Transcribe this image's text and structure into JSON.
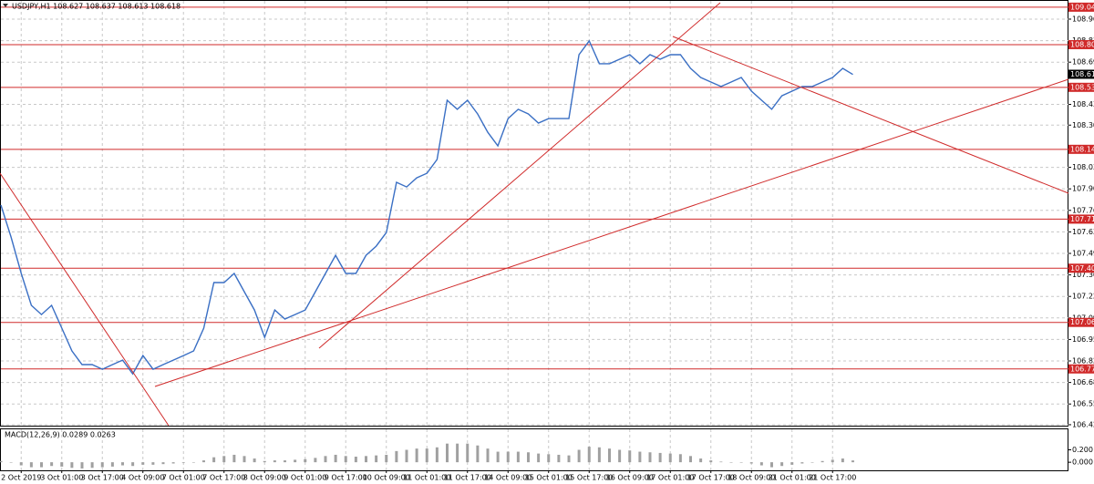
{
  "chart_data": {
    "type": "line",
    "title": "USDJPY,H1  108.627 108.637 108.613 108.618",
    "categories": [
      null,
      null,
      "2 Oct 2019",
      null,
      null,
      null,
      "3 Oct 01:00",
      null,
      null,
      null,
      "3 Oct 17:00",
      null,
      null,
      null,
      "4 Oct 09:00",
      null,
      null,
      null,
      "7 Oct 01:00",
      null,
      null,
      null,
      "7 Oct 17:00",
      null,
      null,
      null,
      "8 Oct 09:00",
      null,
      null,
      null,
      "9 Oct 01:00",
      null,
      null,
      null,
      "9 Oct 17:00",
      null,
      null,
      null,
      "10 Oct 09:00",
      null,
      null,
      null,
      "11 Oct 01:00",
      null,
      null,
      null,
      "11 Oct 17:00",
      null,
      null,
      null,
      "14 Oct 09:00",
      null,
      null,
      null,
      "15 Oct 01:00",
      null,
      null,
      null,
      "15 Oct 17:00",
      null,
      null,
      null,
      "16 Oct 09:00",
      null,
      null,
      null,
      "17 Oct 01:00",
      null,
      null,
      null,
      "17 Oct 17:00",
      null,
      null,
      null,
      "18 Oct 09:00",
      null,
      null,
      null,
      "21 Oct 01:00",
      null,
      null,
      null,
      "21 Oct 17:00",
      null,
      null
    ],
    "series": [
      {
        "color": "#3a6fc4",
        "values": [
          107.798,
          107.598,
          107.369,
          107.169,
          107.111,
          107.169,
          107.026,
          106.883,
          106.797,
          106.797,
          106.768,
          106.797,
          106.825,
          106.739,
          106.854,
          106.768,
          106.797,
          106.825,
          106.854,
          106.883,
          107.026,
          107.312,
          107.312,
          107.369,
          107.254,
          107.14,
          106.968,
          107.14,
          107.083,
          107.111,
          107.14,
          107.254,
          107.369,
          107.483,
          107.369,
          107.369,
          107.483,
          107.54,
          107.626,
          107.941,
          107.912,
          107.969,
          107.998,
          108.084,
          108.456,
          108.399,
          108.456,
          108.37,
          108.255,
          108.17,
          108.341,
          108.399,
          108.37,
          108.313,
          108.341,
          108.341,
          108.341,
          108.742,
          108.828,
          108.685,
          108.685,
          108.713,
          108.742,
          108.685,
          108.742,
          108.713,
          108.742,
          108.742,
          108.656,
          108.599,
          108.57,
          108.542,
          108.57,
          108.599,
          108.513,
          108.456,
          108.399,
          108.484,
          108.513,
          108.542,
          108.542,
          108.57,
          108.599,
          108.656,
          108.618
        ]
      }
    ],
    "ylim": [
      106.414,
      109.085
    ],
    "yticks": [
      {
        "value": 108.965,
        "label": "108.965"
      },
      {
        "value": 108.83,
        "label": "108.830"
      },
      {
        "value": 108.695,
        "label": "108.695"
      },
      {
        "value": 108.43,
        "label": "108.430"
      },
      {
        "value": 108.3,
        "label": "108.300"
      },
      {
        "value": 108.035,
        "label": "108.035"
      },
      {
        "value": 107.9,
        "label": "107.900"
      },
      {
        "value": 107.765,
        "label": "107.765"
      },
      {
        "value": 107.63,
        "label": "107.630"
      },
      {
        "value": 107.495,
        "label": "107.495"
      },
      {
        "value": 107.36,
        "label": "107.360"
      },
      {
        "value": 107.225,
        "label": "107.225"
      },
      {
        "value": 107.09,
        "label": "107.090"
      },
      {
        "value": 106.955,
        "label": "106.955"
      },
      {
        "value": 106.82,
        "label": "106.820"
      },
      {
        "value": 106.685,
        "label": "106.685"
      },
      {
        "value": 106.55,
        "label": "106.550"
      },
      {
        "value": 106.42,
        "label": "106.420"
      }
    ],
    "levels": [
      {
        "value": 109.04,
        "label": "109.040"
      },
      {
        "value": 108.805,
        "label": "108.805"
      },
      {
        "value": 108.537,
        "label": "108.537"
      },
      {
        "value": 108.148,
        "label": "108.148"
      },
      {
        "value": 107.71,
        "label": "107.710"
      },
      {
        "value": 107.402,
        "label": "107.402"
      },
      {
        "value": 107.062,
        "label": "107.062"
      },
      {
        "value": 106.77,
        "label": "106.770"
      }
    ],
    "level_color": "#d02a2a",
    "last_price": 108.619,
    "grid": true,
    "macd": {
      "label": "MACD(12,26,9) 0.0289 0.0263",
      "color": "#a0a0a0",
      "values": [
        0.02,
        0,
        -0.05,
        -0.08,
        -0.08,
        -0.06,
        -0.07,
        -0.09,
        -0.1,
        -0.09,
        -0.08,
        -0.07,
        -0.05,
        -0.06,
        -0.04,
        -0.04,
        -0.03,
        -0.02,
        -0.01,
        0,
        0.03,
        0.08,
        0.1,
        0.12,
        0.1,
        0.06,
        0.02,
        0.03,
        0.03,
        0.04,
        0.05,
        0.07,
        0.1,
        0.12,
        0.1,
        0.09,
        0.1,
        0.11,
        0.12,
        0.18,
        0.2,
        0.22,
        0.22,
        0.24,
        0.3,
        0.3,
        0.3,
        0.27,
        0.22,
        0.17,
        0.17,
        0.17,
        0.16,
        0.14,
        0.13,
        0.12,
        0.11,
        0.2,
        0.25,
        0.24,
        0.22,
        0.2,
        0.19,
        0.17,
        0.16,
        0.15,
        0.14,
        0.13,
        0.1,
        0.06,
        0.03,
        0.01,
        0,
        0,
        -0.02,
        -0.05,
        -0.08,
        -0.06,
        -0.04,
        -0.02,
        0,
        0.02,
        0.04,
        0.06,
        0.0289
      ],
      "ylim": [
        -0.13,
        0.53
      ],
      "yticks": [
        {
          "value": 0.2,
          "label": "0.200"
        },
        {
          "value": 0,
          "label": "0.000"
        }
      ]
    }
  }
}
